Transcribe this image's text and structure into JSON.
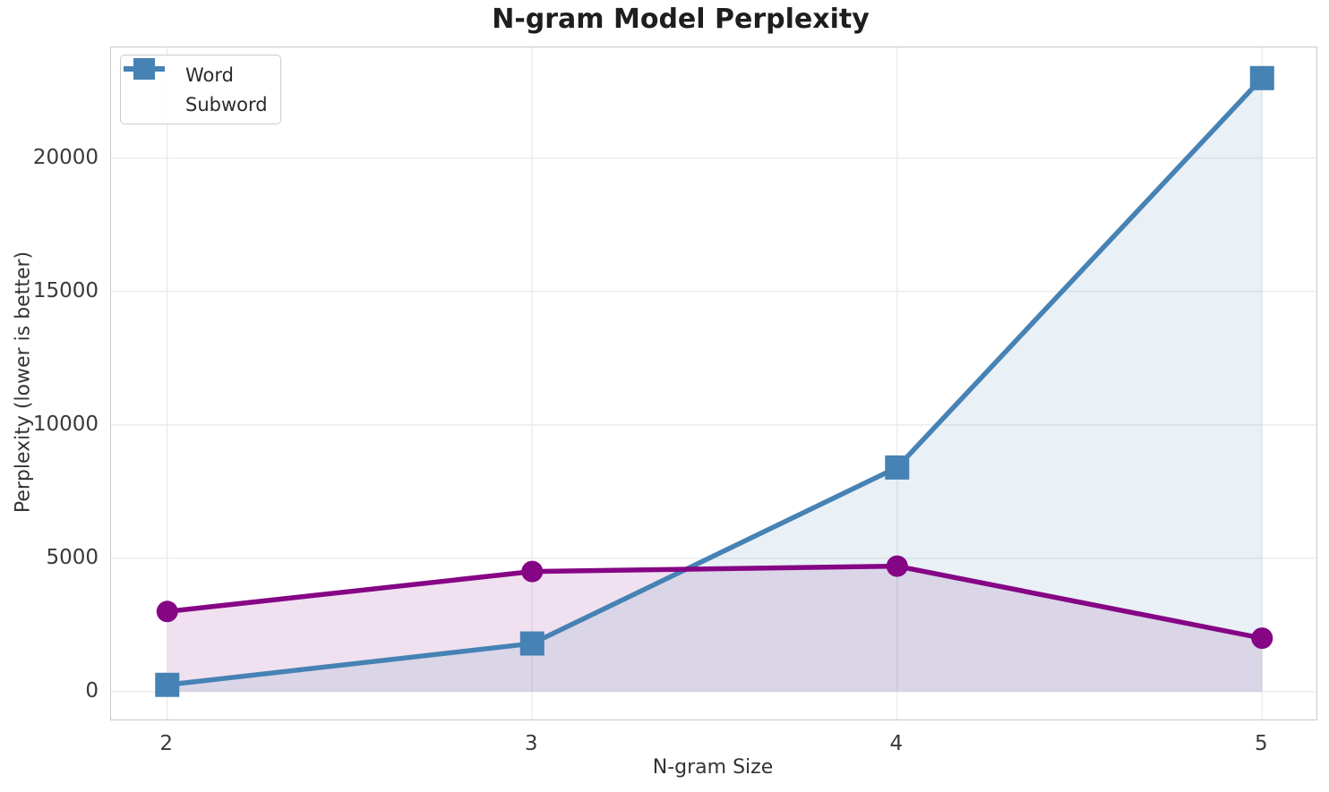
{
  "chart_data": {
    "type": "line",
    "title": "N-gram Model Perplexity",
    "xlabel": "N-gram Size",
    "ylabel": "Perplexity (lower is better)",
    "x": [
      2,
      3,
      4,
      5
    ],
    "xtick_labels": [
      "2",
      "3",
      "4",
      "5"
    ],
    "yticks": [
      0,
      5000,
      10000,
      15000,
      20000
    ],
    "ytick_labels": [
      "0",
      "5000",
      "10000",
      "15000",
      "20000"
    ],
    "xlim": [
      1.846,
      5.149
    ],
    "ylim": [
      -1050,
      24150
    ],
    "grid": true,
    "grid_color": "#ececec",
    "legend_position": "upper left",
    "series": [
      {
        "name": "Word",
        "marker": "circle",
        "color": "#850585",
        "fill_opacity": 0.12,
        "values": [
          3000,
          4500,
          4700,
          2000
        ]
      },
      {
        "name": "Subword",
        "marker": "square",
        "color": "#4682B4",
        "fill_opacity": 0.12,
        "values": [
          250,
          1800,
          8400,
          23000
        ]
      }
    ]
  }
}
